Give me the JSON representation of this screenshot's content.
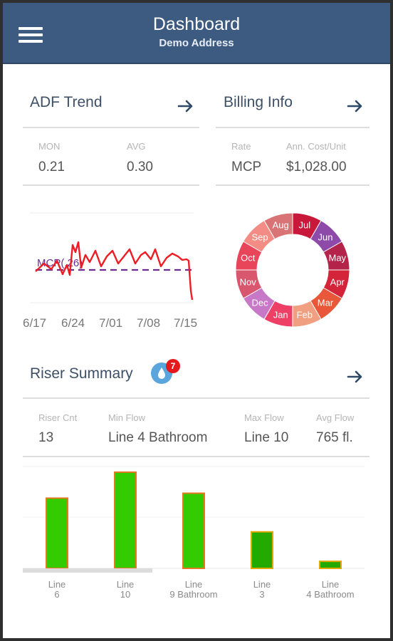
{
  "header": {
    "title": "Dashboard",
    "subtitle": "Demo Address",
    "menu_icon": "hamburger-icon"
  },
  "adf": {
    "title": "ADF Trend",
    "stats": [
      {
        "label": "MON",
        "value": "0.21"
      },
      {
        "label": "AVG",
        "value": "0.30"
      }
    ],
    "chart": {
      "reference_label": "MCP(.26)",
      "reference_value": 0.26,
      "line_color": "#ee1c24",
      "reference_color": "#6b2d8f",
      "x_ticks": [
        "6/17",
        "6/24",
        "7/01",
        "7/08",
        "7/15"
      ]
    }
  },
  "billing": {
    "title": "Billing Info",
    "stats": [
      {
        "label": "Rate",
        "value": "MCP"
      },
      {
        "label": "Ann. Cost/Unit",
        "value": "$1,028.00"
      }
    ],
    "months": [
      {
        "label": "Jul",
        "color": "#c8193a"
      },
      {
        "label": "Jun",
        "color": "#8e4aa8"
      },
      {
        "label": "May",
        "color": "#b3234a"
      },
      {
        "label": "Apr",
        "color": "#d4243a"
      },
      {
        "label": "Mar",
        "color": "#e8573a"
      },
      {
        "label": "Feb",
        "color": "#f0a080"
      },
      {
        "label": "Jan",
        "color": "#ee4066"
      },
      {
        "label": "Dec",
        "color": "#c779c8"
      },
      {
        "label": "Nov",
        "color": "#d9576e"
      },
      {
        "label": "Oct",
        "color": "#e8455a"
      },
      {
        "label": "Sep",
        "color": "#f28c84"
      },
      {
        "label": "Aug",
        "color": "#d97476"
      }
    ]
  },
  "riser": {
    "title": "Riser Summary",
    "badge_icon": "water-drop-icon",
    "badge_count": "7",
    "stats": [
      {
        "label": "Riser Cnt",
        "value": "13"
      },
      {
        "label": "Min Flow",
        "value": "Line 4 Bathroom"
      },
      {
        "label": "Max Flow",
        "value": "Line 10"
      },
      {
        "label": "Avg Flow",
        "value": "765 fl."
      }
    ]
  },
  "chart_data": {
    "type": "bar",
    "categories": [
      {
        "line1": "Line",
        "line2": "6"
      },
      {
        "line1": "Line",
        "line2": "10"
      },
      {
        "line1": "Line",
        "line2": "9 Bathroom"
      },
      {
        "line1": "Line",
        "line2": "3"
      },
      {
        "line1": "Line",
        "line2": "4 Bathroom"
      }
    ],
    "values": [
      100,
      137,
      107,
      52,
      10
    ],
    "fills": [
      "#33cc00",
      "#33cc00",
      "#33cc00",
      "#22aa00",
      "#22aa00"
    ],
    "strokes": [
      "#e87722",
      "#e87722",
      "#e87722",
      "#e0a800",
      "#e0a800"
    ],
    "ylim": [
      0,
      140
    ],
    "grid": true
  }
}
